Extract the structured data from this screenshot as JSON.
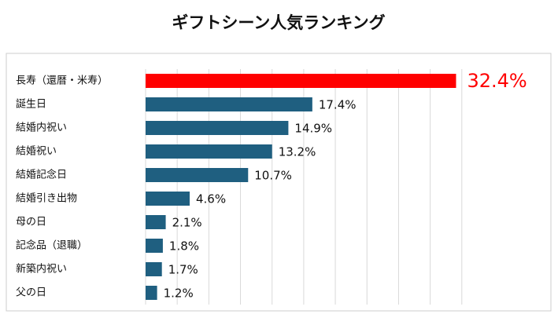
{
  "chart_data": {
    "type": "barh",
    "title": "ギフトシーン人気ランキング",
    "categories": [
      "長寿（還暦・米寿）",
      "誕生日",
      "結婚内祝い",
      "結婚祝い",
      "結婚記念日",
      "結婚引き出物",
      "母の日",
      "記念品（退職）",
      "新築内祝い",
      "父の日"
    ],
    "values": [
      32.4,
      17.4,
      14.9,
      13.2,
      10.7,
      4.6,
      2.1,
      1.8,
      1.7,
      1.2
    ],
    "value_labels": [
      "32.4%",
      "17.4%",
      "14.9%",
      "13.2%",
      "10.7%",
      "4.6%",
      "2.1%",
      "1.8%",
      "1.7%",
      "1.2%"
    ],
    "colors": [
      "#ff0000",
      "#1f5f80",
      "#1f5f80",
      "#1f5f80",
      "#1f5f80",
      "#1f5f80",
      "#1f5f80",
      "#1f5f80",
      "#1f5f80",
      "#1f5f80"
    ],
    "label_colors": [
      "#ff0000",
      "#111111",
      "#111111",
      "#111111",
      "#111111",
      "#111111",
      "#111111",
      "#111111",
      "#111111",
      "#111111"
    ],
    "xlim": [
      0,
      40
    ],
    "xticks": [
      0,
      3.3,
      6.6,
      9.9,
      13.2,
      16.5,
      19.8,
      23.1,
      26.4,
      29.7,
      33
    ],
    "grid": true
  }
}
